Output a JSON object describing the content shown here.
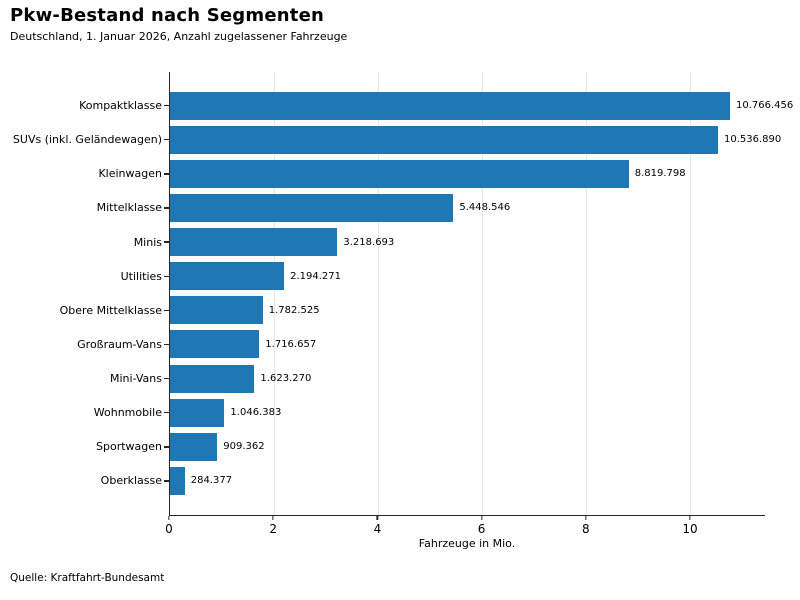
{
  "chart_data": {
    "type": "bar",
    "orientation": "horizontal",
    "title": "Pkw-Bestand nach Segmenten",
    "subtitle": "Deutschland, 1. Januar 2026, Anzahl zugelassener Fahrzeuge",
    "xlabel": "Fahrzeuge in Mio.",
    "source": "Quelle: Kraftfahrt-Bundesamt",
    "categories": [
      "Kompaktklasse",
      "SUVs (inkl. Geländewagen)",
      "Kleinwagen",
      "Mittelklasse",
      "Minis",
      "Utilities",
      "Obere Mittelklasse",
      "Großraum-Vans",
      "Mini-Vans",
      "Wohnmobile",
      "Sportwagen",
      "Oberklasse"
    ],
    "values": [
      10766456,
      10536890,
      8819798,
      5448546,
      3218693,
      2194271,
      1782525,
      1716657,
      1623270,
      1046383,
      909362,
      284377
    ],
    "value_labels": [
      "10.766.456",
      "10.536.890",
      "8.819.798",
      "5.448.546",
      "3.218.693",
      "2.194.271",
      "1.782.525",
      "1.716.657",
      "1.623.270",
      "1.046.383",
      "909.362",
      "284.377"
    ],
    "x_ticks": [
      0,
      2,
      4,
      6,
      8,
      10
    ],
    "xlim": [
      0,
      11.44
    ],
    "x_unit_divisor": 1000000,
    "grid": true,
    "legend_position": "none",
    "bar_color": "#1f77b4",
    "grid_color": "#e4e4e4",
    "axis_color": "#262626"
  }
}
